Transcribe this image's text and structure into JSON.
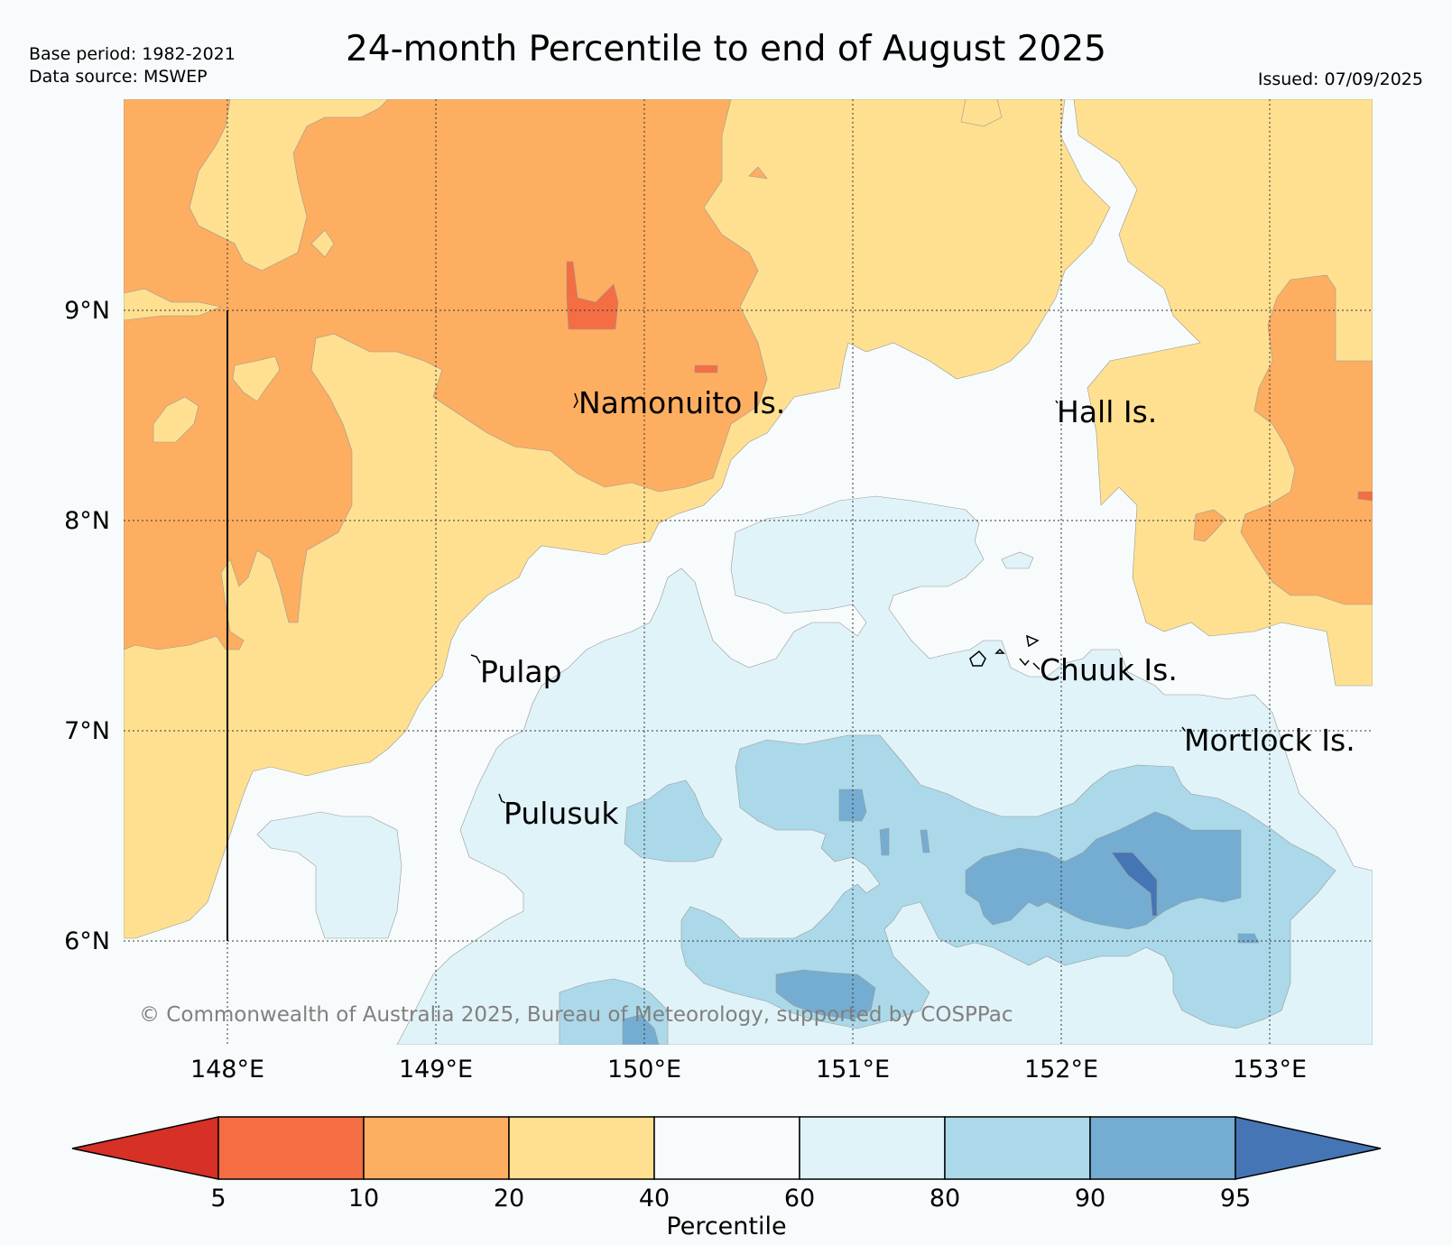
{
  "header": {
    "base_period": "Base period: 1982-2021",
    "data_source": "Data source: MSWEP",
    "title": "24-month Percentile to end of August 2025",
    "issued": "Issued: 07/09/2025"
  },
  "map": {
    "lat_labels": [
      "9°N",
      "8°N",
      "7°N",
      "6°N"
    ],
    "lon_labels": [
      "148°E",
      "149°E",
      "150°E",
      "151°E",
      "152°E",
      "153°E"
    ],
    "places": [
      "Namonuito Is.",
      "Hall Is.",
      "Pulap",
      "Chuuk Is.",
      "Mortlock Is.",
      "Pulusuk"
    ],
    "copyright": "© Commonwealth of Australia 2025, Bureau of Meteorology, supported by COSPPac",
    "colors": {
      "lt5": "#d73027",
      "p5_10": "#f46d43",
      "p10_20": "#fdae61",
      "p20_40": "#fee090",
      "p40_60": "#f7fbfc",
      "p60_80": "#e0f3f8",
      "p80_90": "#abd9e9",
      "p90_95": "#74add1",
      "gt95": "#4575b4"
    }
  },
  "colorbar": {
    "ticks": [
      "5",
      "10",
      "20",
      "40",
      "60",
      "80",
      "90",
      "95"
    ],
    "label": "Percentile",
    "colors": [
      "#d73027",
      "#f46d43",
      "#fdae61",
      "#fee090",
      "#f7fbfc",
      "#e0f3f8",
      "#abd9e9",
      "#74add1",
      "#4575b4"
    ]
  }
}
